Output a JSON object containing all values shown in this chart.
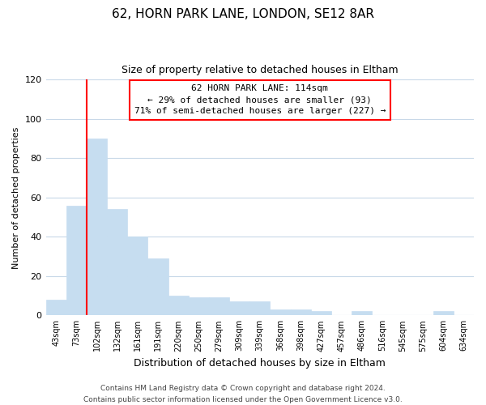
{
  "title1": "62, HORN PARK LANE, LONDON, SE12 8AR",
  "title2": "Size of property relative to detached houses in Eltham",
  "xlabel": "Distribution of detached houses by size in Eltham",
  "ylabel": "Number of detached properties",
  "bar_color": "#c6ddf0",
  "bins": [
    "43sqm",
    "73sqm",
    "102sqm",
    "132sqm",
    "161sqm",
    "191sqm",
    "220sqm",
    "250sqm",
    "279sqm",
    "309sqm",
    "339sqm",
    "368sqm",
    "398sqm",
    "427sqm",
    "457sqm",
    "486sqm",
    "516sqm",
    "545sqm",
    "575sqm",
    "604sqm",
    "634sqm"
  ],
  "values": [
    8,
    56,
    90,
    54,
    40,
    29,
    10,
    9,
    9,
    7,
    7,
    3,
    3,
    2,
    0,
    2,
    0,
    0,
    0,
    2,
    0
  ],
  "red_line_bin_index": 2,
  "ylim": [
    0,
    120
  ],
  "yticks": [
    0,
    20,
    40,
    60,
    80,
    100,
    120
  ],
  "annotation_line1": "62 HORN PARK LANE: 114sqm",
  "annotation_line2": "← 29% of detached houses are smaller (93)",
  "annotation_line3": "71% of semi-detached houses are larger (227) →",
  "footer1": "Contains HM Land Registry data © Crown copyright and database right 2024.",
  "footer2": "Contains public sector information licensed under the Open Government Licence v3.0.",
  "background_color": "#ffffff",
  "grid_color": "#c8d8e8"
}
